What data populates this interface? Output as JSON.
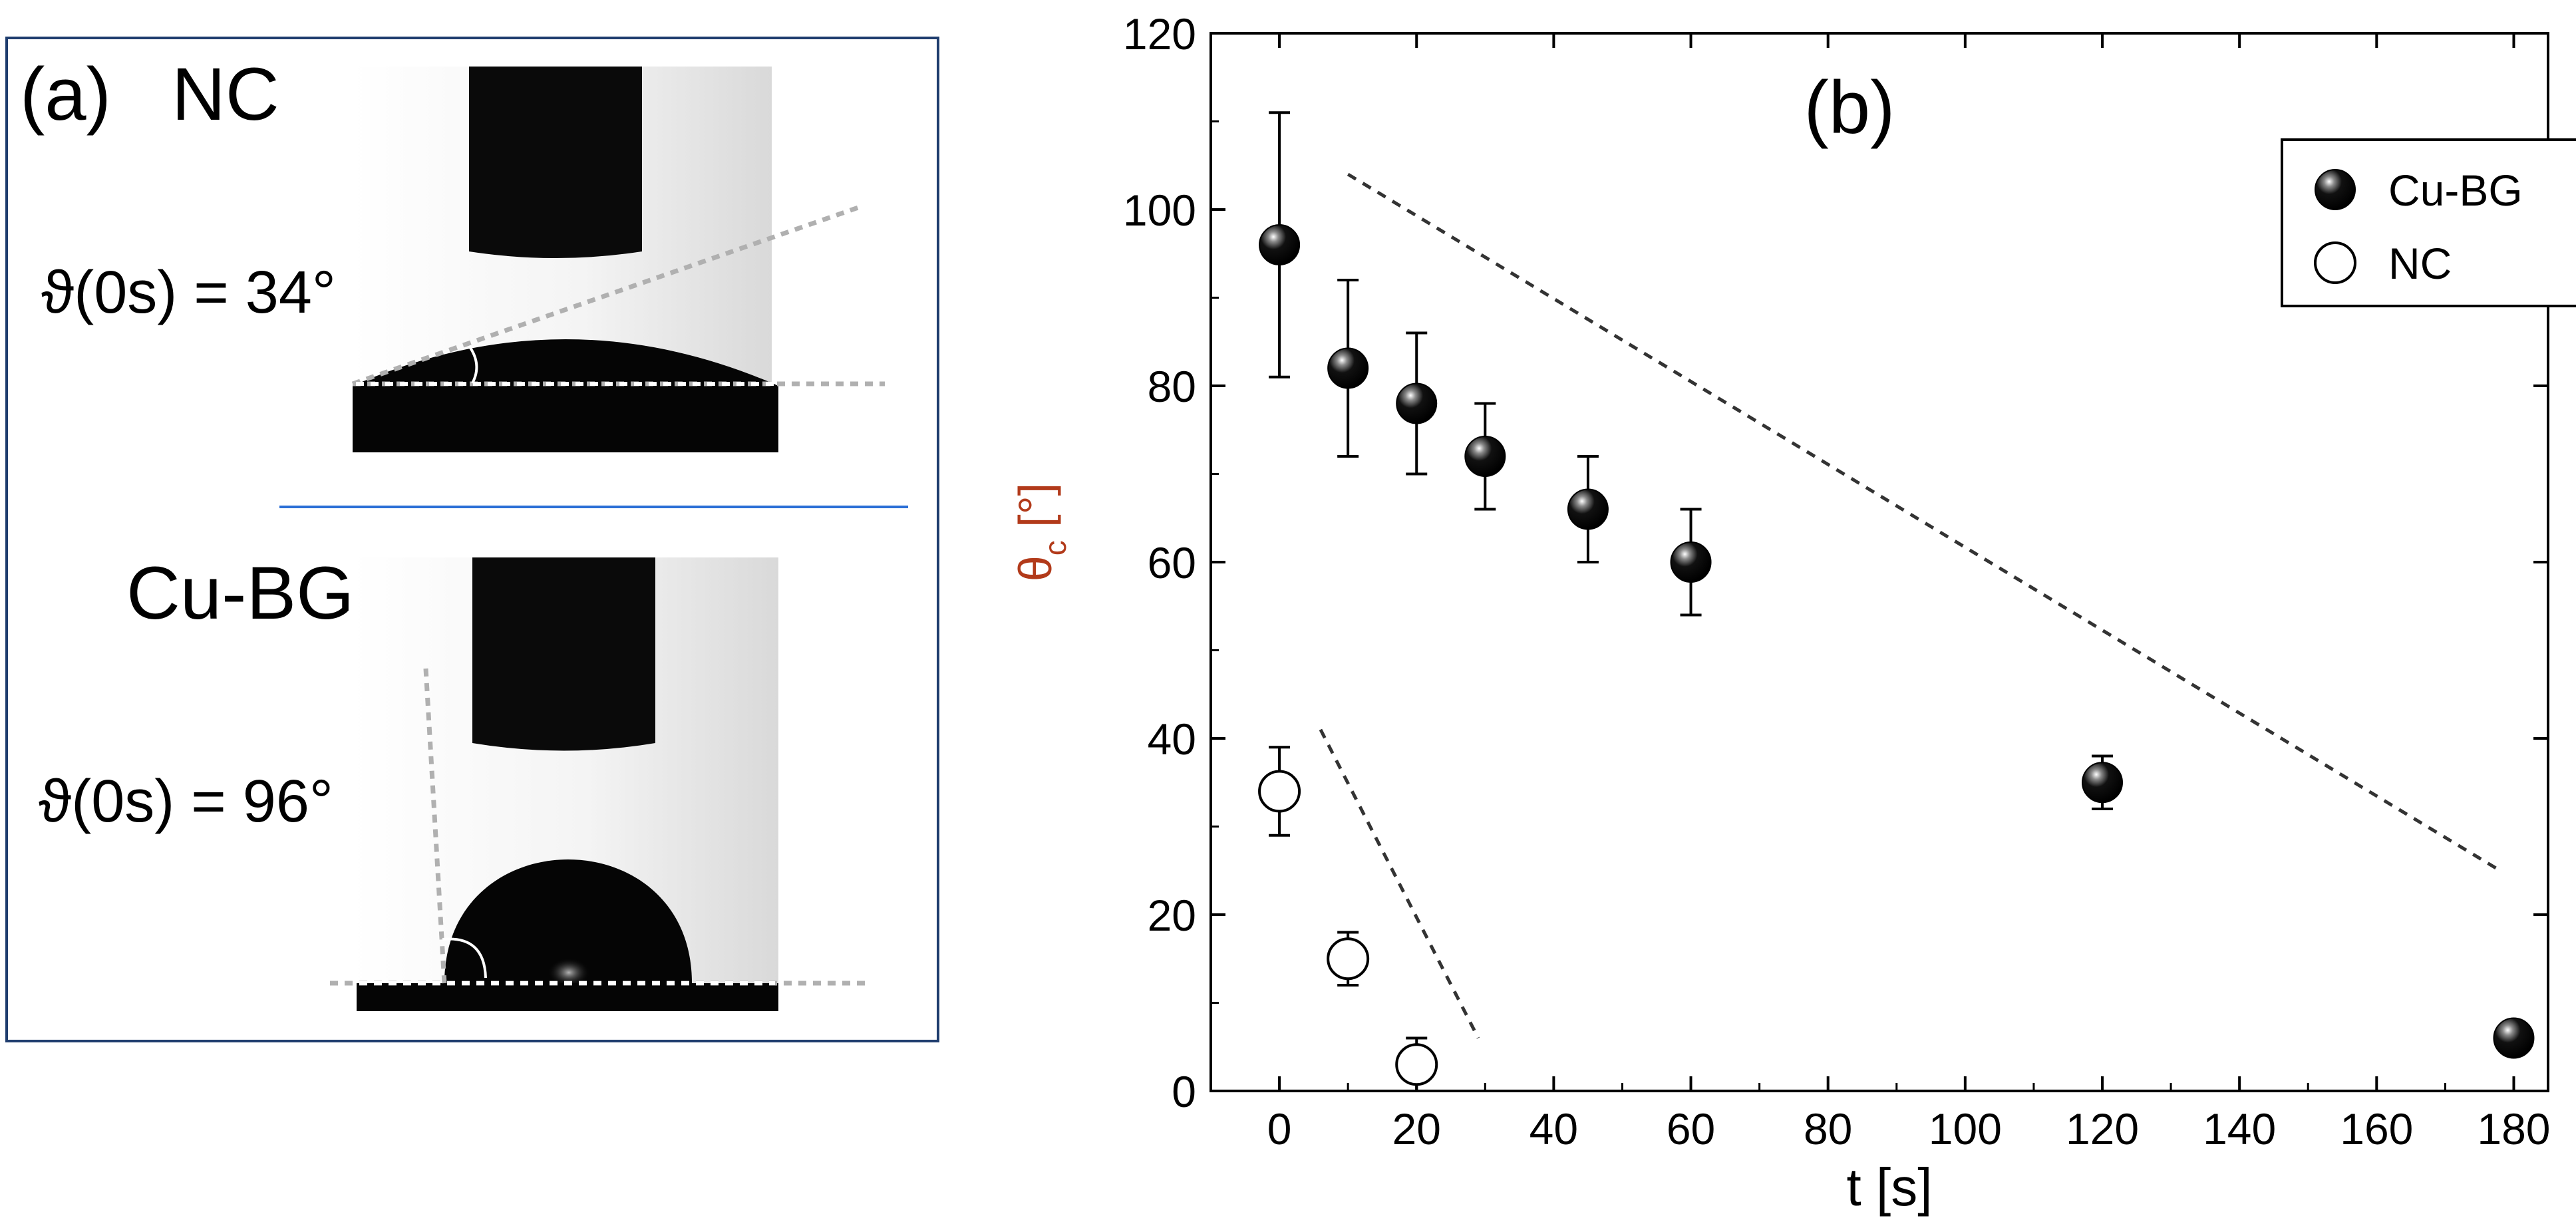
{
  "panel_a": {
    "label": "(a)",
    "top": {
      "sample": "NC",
      "angle_label": "ϑ(0s) = 34°"
    },
    "bottom": {
      "sample": "Cu-BG",
      "angle_label": "ϑ(0s) = 96°"
    }
  },
  "chart_data": {
    "type": "scatter",
    "panel_label": "(b)",
    "xlabel": "t [s]",
    "ylabel": "θc [°]",
    "ylabel_main": "θ",
    "ylabel_sub": "c",
    "ylabel_unit": " [°]",
    "xlim": [
      -10,
      185
    ],
    "ylim": [
      0,
      120
    ],
    "xticks": [
      0,
      20,
      40,
      60,
      80,
      100,
      120,
      140,
      160,
      180
    ],
    "yticks": [
      0,
      20,
      40,
      60,
      80,
      100,
      120
    ],
    "legend_position": "top-right",
    "series": [
      {
        "name": "Cu-BG",
        "marker": "filled-sphere",
        "color": "#000000",
        "points": [
          {
            "x": 0,
            "y": 96,
            "err": 15
          },
          {
            "x": 10,
            "y": 82,
            "err": 10
          },
          {
            "x": 20,
            "y": 78,
            "err": 8
          },
          {
            "x": 30,
            "y": 72,
            "err": 6
          },
          {
            "x": 45,
            "y": 66,
            "err": 6
          },
          {
            "x": 60,
            "y": 60,
            "err": 6
          },
          {
            "x": 120,
            "y": 35,
            "err": 3
          },
          {
            "x": 180,
            "y": 6,
            "err": 1
          }
        ]
      },
      {
        "name": "NC",
        "marker": "open-circle",
        "color": "#000000",
        "points": [
          {
            "x": 0,
            "y": 34,
            "err": 5
          },
          {
            "x": 10,
            "y": 15,
            "err": 3
          },
          {
            "x": 20,
            "y": 3,
            "err": 3
          }
        ]
      }
    ],
    "trend_lines": [
      {
        "x": [
          10,
          178
        ],
        "y": [
          104,
          25
        ]
      },
      {
        "x": [
          6,
          29
        ],
        "y": [
          41,
          6
        ]
      }
    ]
  }
}
